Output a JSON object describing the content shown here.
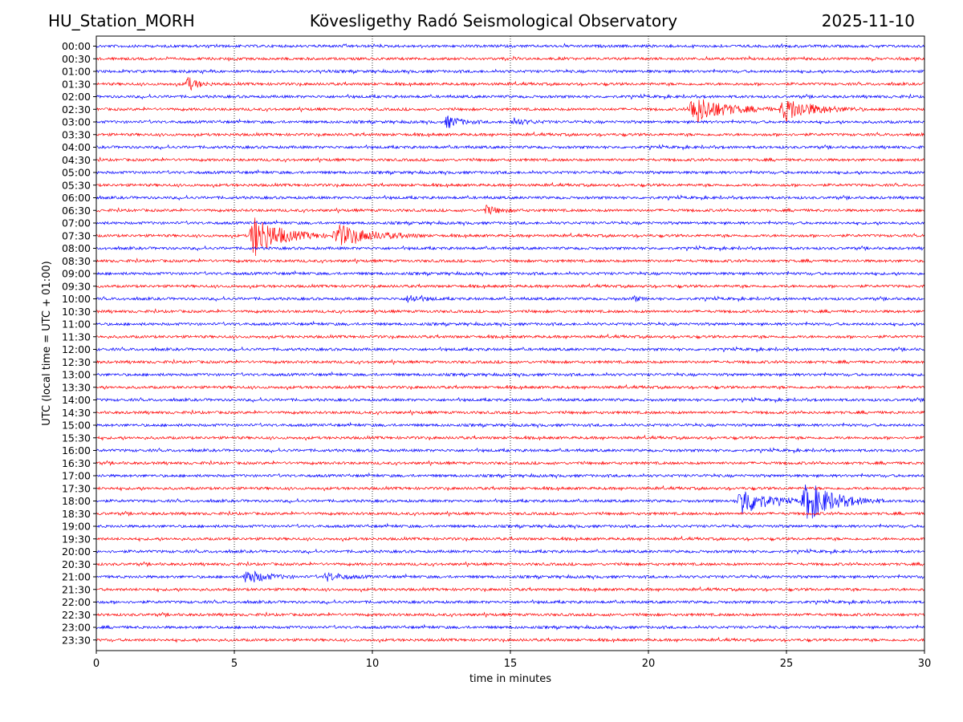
{
  "header": {
    "station": "HU_Station_MORH",
    "observatory": "Kövesligethy Radó Seismological Observatory",
    "date": "2025-11-10"
  },
  "chart_data": {
    "type": "line",
    "subtype": "helicorder",
    "xlabel": "time in minutes",
    "ylabel": "UTC (local time = UTC + 01:00)",
    "xlim": [
      0,
      30
    ],
    "x_ticks": [
      "0",
      "5",
      "10",
      "15",
      "20",
      "25",
      "30"
    ],
    "grid": "vertical dotted lines at 5-minute intervals",
    "row_labels": [
      "00:00",
      "00:30",
      "01:00",
      "01:30",
      "02:00",
      "02:30",
      "03:00",
      "03:30",
      "04:00",
      "04:30",
      "05:00",
      "05:30",
      "06:00",
      "06:30",
      "07:00",
      "07:30",
      "08:00",
      "08:30",
      "09:00",
      "09:30",
      "10:00",
      "10:30",
      "11:00",
      "11:30",
      "12:00",
      "12:30",
      "13:00",
      "13:30",
      "14:00",
      "14:30",
      "15:00",
      "15:30",
      "16:00",
      "16:30",
      "17:00",
      "17:30",
      "18:00",
      "18:30",
      "19:00",
      "19:30",
      "20:00",
      "20:30",
      "21:00",
      "21:30",
      "22:00",
      "22:30",
      "23:00",
      "23:30"
    ],
    "colors": {
      "even_rows": "#0000ff",
      "odd_rows": "#ff0000"
    },
    "events": [
      {
        "row": "01:30",
        "segments": [
          {
            "start_min": 3.2,
            "end_min": 4.3,
            "amplitude": 0.35
          }
        ]
      },
      {
        "row": "02:30",
        "segments": [
          {
            "start_min": 21.4,
            "end_min": 24.5,
            "amplitude": 0.7
          },
          {
            "start_min": 24.7,
            "end_min": 27.8,
            "amplitude": 0.55
          }
        ]
      },
      {
        "row": "03:00",
        "segments": [
          {
            "start_min": 12.6,
            "end_min": 14.0,
            "amplitude": 0.3
          },
          {
            "start_min": 15.0,
            "end_min": 16.5,
            "amplitude": 0.15
          }
        ]
      },
      {
        "row": "06:30",
        "segments": [
          {
            "start_min": 14.0,
            "end_min": 15.5,
            "amplitude": 0.2
          }
        ]
      },
      {
        "row": "07:30",
        "segments": [
          {
            "start_min": 5.5,
            "end_min": 8.3,
            "amplitude": 1.0
          },
          {
            "start_min": 8.5,
            "end_min": 12.0,
            "amplitude": 0.5
          }
        ]
      },
      {
        "row": "10:00",
        "segments": [
          {
            "start_min": 11.2,
            "end_min": 12.6,
            "amplitude": 0.2
          },
          {
            "start_min": 19.4,
            "end_min": 20.0,
            "amplitude": 0.15
          }
        ]
      },
      {
        "row": "18:00",
        "segments": [
          {
            "start_min": 23.2,
            "end_min": 25.5,
            "amplitude": 0.75
          },
          {
            "start_min": 25.5,
            "end_min": 28.5,
            "amplitude": 0.95
          }
        ]
      },
      {
        "row": "21:00",
        "segments": [
          {
            "start_min": 5.3,
            "end_min": 7.2,
            "amplitude": 0.35
          },
          {
            "start_min": 8.2,
            "end_min": 10.0,
            "amplitude": 0.2
          }
        ]
      }
    ]
  }
}
